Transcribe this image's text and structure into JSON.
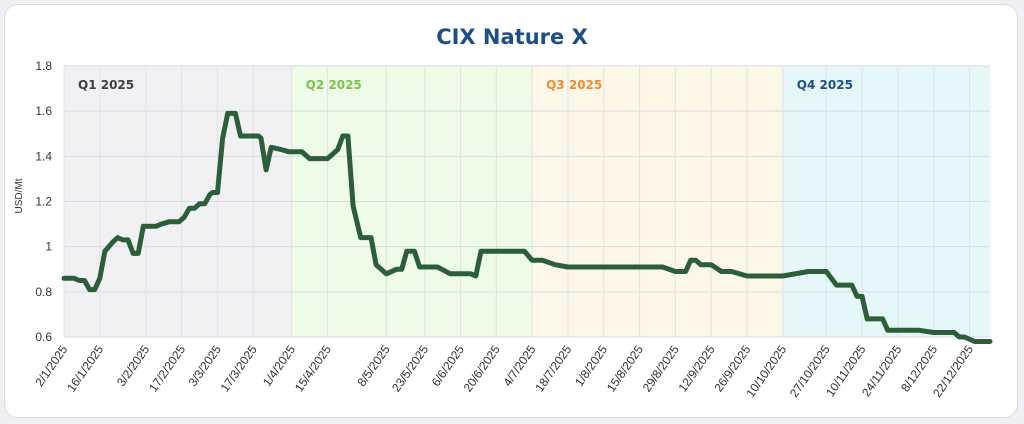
{
  "chart_data": {
    "type": "line",
    "title": "CIX Nature X",
    "ylabel": "USD/Mt",
    "ylim": [
      0.6,
      1.8
    ],
    "yticks": [
      "0.6",
      "0.8",
      "1",
      "1.2",
      "1.4",
      "1.6",
      "1.8"
    ],
    "grid": true,
    "colors": {
      "line": "#2c5e3a",
      "q1": "#f1f1f3",
      "q2": "#eefbe6",
      "q3": "#fdf7e8",
      "q4": "#e6f7fa",
      "q1_text": "#3a3f4b",
      "q2_text": "#7cc24c",
      "q3_text": "#f08a30",
      "q4_text": "#1d4f86"
    },
    "quarters": [
      {
        "label": "Q1 2025",
        "start": "2/1/2025",
        "end": "1/4/2025"
      },
      {
        "label": "Q2 2025",
        "start": "1/4/2025",
        "end": "4/7/2025"
      },
      {
        "label": "Q3 2025",
        "start": "4/7/2025",
        "end": "10/10/2025"
      },
      {
        "label": "Q4 2025",
        "start": "10/10/2025",
        "end": "30/12/2025"
      }
    ],
    "xticks": [
      "2/1/2025",
      "16/1/2025",
      "3/2/2025",
      "17/2/2025",
      "3/3/2025",
      "17/3/2025",
      "1/4/2025",
      "15/4/2025",
      "8/5/2025",
      "23/5/2025",
      "6/6/2025",
      "20/6/2025",
      "4/7/2025",
      "18/7/2025",
      "1/8/2025",
      "15/8/2025",
      "29/8/2025",
      "12/9/2025",
      "26/9/2025",
      "10/10/2025",
      "27/10/2025",
      "10/11/2025",
      "24/11/2025",
      "8/12/2025",
      "22/12/2025"
    ],
    "series": [
      {
        "x": [
          "2/1/2025",
          "6/1/2025",
          "8/1/2025",
          "10/1/2025",
          "12/1/2025",
          "14/1/2025",
          "16/1/2025",
          "18/1/2025",
          "21/1/2025",
          "23/1/2025",
          "25/1/2025",
          "27/1/2025",
          "29/1/2025",
          "31/1/2025",
          "2/2/2025",
          "5/2/2025",
          "7/2/2025",
          "9/2/2025",
          "12/2/2025",
          "14/2/2025",
          "16/2/2025",
          "18/2/2025",
          "20/2/2025",
          "22/2/2025",
          "24/2/2025",
          "26/2/2025",
          "28/2/2025",
          "1/3/2025",
          "3/3/2025",
          "5/3/2025",
          "7/3/2025",
          "10/3/2025",
          "12/3/2025",
          "14/3/2025",
          "17/3/2025",
          "19/3/2025",
          "20/3/2025",
          "22/3/2025",
          "24/3/2025",
          "28/3/2025",
          "31/3/2025",
          "5/4/2025",
          "8/4/2025",
          "11/4/2025",
          "15/4/2025",
          "19/4/2025",
          "21/4/2025",
          "23/4/2025",
          "25/4/2025",
          "28/4/2025",
          "30/4/2025",
          "2/5/2025",
          "4/5/2025",
          "8/5/2025",
          "12/5/2025",
          "14/5/2025",
          "16/5/2025",
          "19/5/2025",
          "21/5/2025",
          "23/5/2025",
          "25/5/2025",
          "28/5/2025",
          "2/6/2025",
          "6/6/2025",
          "10/6/2025",
          "12/6/2025",
          "14/6/2025",
          "20/6/2025",
          "24/6/2025",
          "28/6/2025",
          "1/7/2025",
          "4/7/2025",
          "8/7/2025",
          "13/7/2025",
          "18/7/2025",
          "25/7/2025",
          "1/8/2025",
          "8/8/2025",
          "15/8/2025",
          "22/8/2025",
          "24/8/2025",
          "29/8/2025",
          "31/8/2025",
          "2/9/2025",
          "4/9/2025",
          "6/9/2025",
          "8/9/2025",
          "12/9/2025",
          "16/9/2025",
          "20/9/2025",
          "26/9/2025",
          "10/10/2025",
          "20/10/2025",
          "22/10/2025",
          "27/10/2025",
          "31/10/2025",
          "2/11/2025",
          "6/11/2025",
          "8/11/2025",
          "10/11/2025",
          "12/11/2025",
          "14/11/2025",
          "18/11/2025",
          "20/11/2025",
          "24/11/2025",
          "28/11/2025",
          "2/12/2025",
          "8/12/2025",
          "12/12/2025",
          "16/12/2025",
          "18/12/2025",
          "20/12/2025",
          "24/12/2025",
          "30/12/2025"
        ],
        "y": [
          0.86,
          0.86,
          0.85,
          0.85,
          0.81,
          0.81,
          0.86,
          0.98,
          1.02,
          1.04,
          1.03,
          1.03,
          0.97,
          0.97,
          1.09,
          1.09,
          1.09,
          1.1,
          1.11,
          1.11,
          1.11,
          1.13,
          1.17,
          1.17,
          1.19,
          1.19,
          1.23,
          1.24,
          1.24,
          1.48,
          1.59,
          1.59,
          1.49,
          1.49,
          1.49,
          1.49,
          1.48,
          1.34,
          1.44,
          1.43,
          1.42,
          1.42,
          1.39,
          1.39,
          1.39,
          1.43,
          1.49,
          1.49,
          1.18,
          1.04,
          1.04,
          1.04,
          0.92,
          0.88,
          0.9,
          0.9,
          0.98,
          0.98,
          0.91,
          0.91,
          0.91,
          0.91,
          0.88,
          0.88,
          0.88,
          0.87,
          0.98,
          0.98,
          0.98,
          0.98,
          0.98,
          0.94,
          0.94,
          0.92,
          0.91,
          0.91,
          0.91,
          0.91,
          0.91,
          0.91,
          0.91,
          0.89,
          0.89,
          0.89,
          0.94,
          0.94,
          0.92,
          0.92,
          0.89,
          0.89,
          0.87,
          0.87,
          0.89,
          0.89,
          0.89,
          0.83,
          0.83,
          0.83,
          0.78,
          0.78,
          0.68,
          0.68,
          0.68,
          0.63,
          0.63,
          0.63,
          0.63,
          0.62,
          0.62,
          0.62,
          0.6,
          0.6,
          0.58,
          0.58
        ]
      }
    ]
  }
}
